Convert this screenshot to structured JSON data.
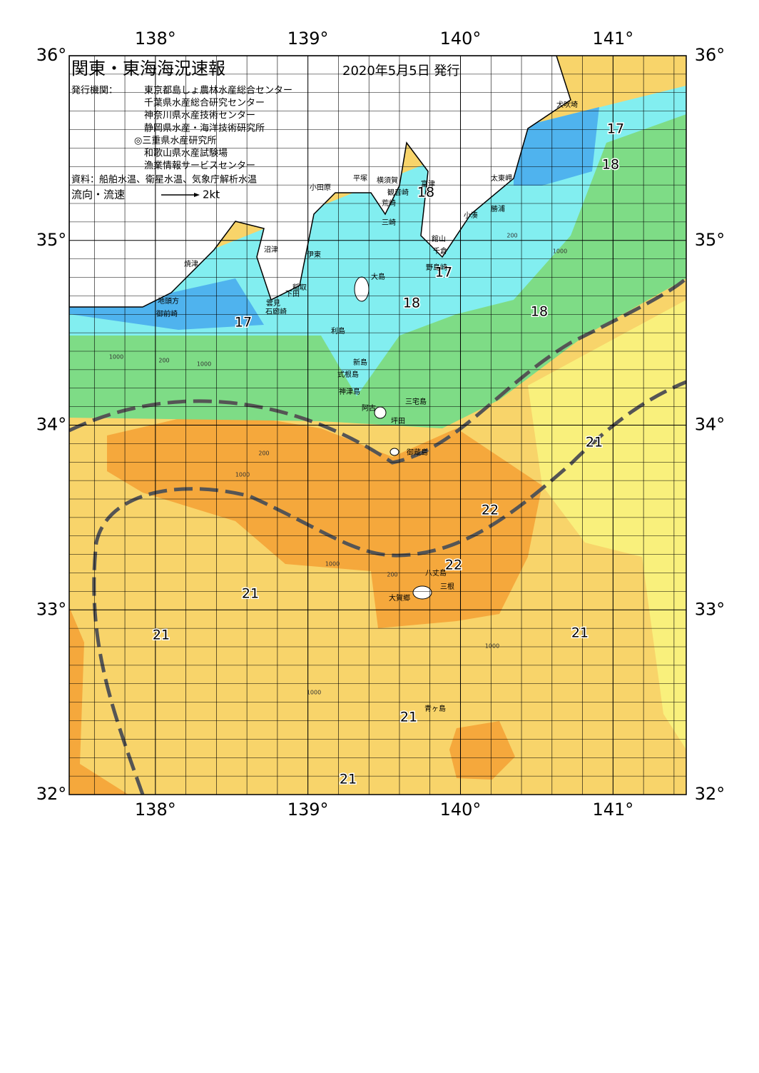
{
  "header": {
    "title": "関東・東海海況速報",
    "date": "2020年5月5日 発行",
    "issuer_label": "発行機関：",
    "issuers": [
      "東京都島しょ農林水産総合センター",
      "千葉県水産総合研究センター",
      "神奈川県水産技術センター",
      "静岡県水産・海洋技術研究所",
      "◎三重県水産研究所",
      "和歌山県水産試験場",
      "漁業情報サービスセンター"
    ],
    "source": "資料：船舶水温、衛星水温、気象庁解析水温",
    "legend_label": "流向・流速",
    "legend_speed": "2kt"
  },
  "map": {
    "xlim": [
      137.435,
      141.48
    ],
    "ylim": [
      32,
      36
    ],
    "lon_ticks": [
      {
        "value": 138,
        "label": "138°"
      },
      {
        "value": 139,
        "label": "139°"
      },
      {
        "value": 140,
        "label": "140°"
      },
      {
        "value": 141,
        "label": "141°"
      }
    ],
    "lat_ticks": [
      {
        "value": 32,
        "label": "32°"
      },
      {
        "value": 33,
        "label": "33°"
      },
      {
        "value": 34,
        "label": "34°"
      },
      {
        "value": 35,
        "label": "35°"
      },
      {
        "value": 36,
        "label": "36°"
      }
    ],
    "temperature_labels": [
      17,
      18,
      18,
      17,
      18,
      18,
      17,
      21,
      22,
      22,
      21,
      21,
      21,
      21,
      21
    ],
    "place_names": [
      "犬吠埼",
      "太東岬",
      "勝浦",
      "小湊",
      "富津",
      "館山",
      "千倉",
      "野島崎",
      "観音崎",
      "横須賀",
      "平塚",
      "小田原",
      "荒崎",
      "三崎",
      "沼津",
      "伊東",
      "焼津",
      "稲取",
      "下田",
      "大島",
      "雲見",
      "石廊崎",
      "地頭方",
      "御前崎",
      "利島",
      "新島",
      "式根島",
      "神津島",
      "三宅島",
      "阿古",
      "坪田",
      "御蔵島",
      "八丈島",
      "三根",
      "大賀郷",
      "青ヶ島"
    ],
    "contour_labels": [
      "200",
      "1000",
      "200",
      "1000",
      "1000",
      "200",
      "1000",
      "1000",
      "200",
      "1000",
      "1000"
    ]
  }
}
